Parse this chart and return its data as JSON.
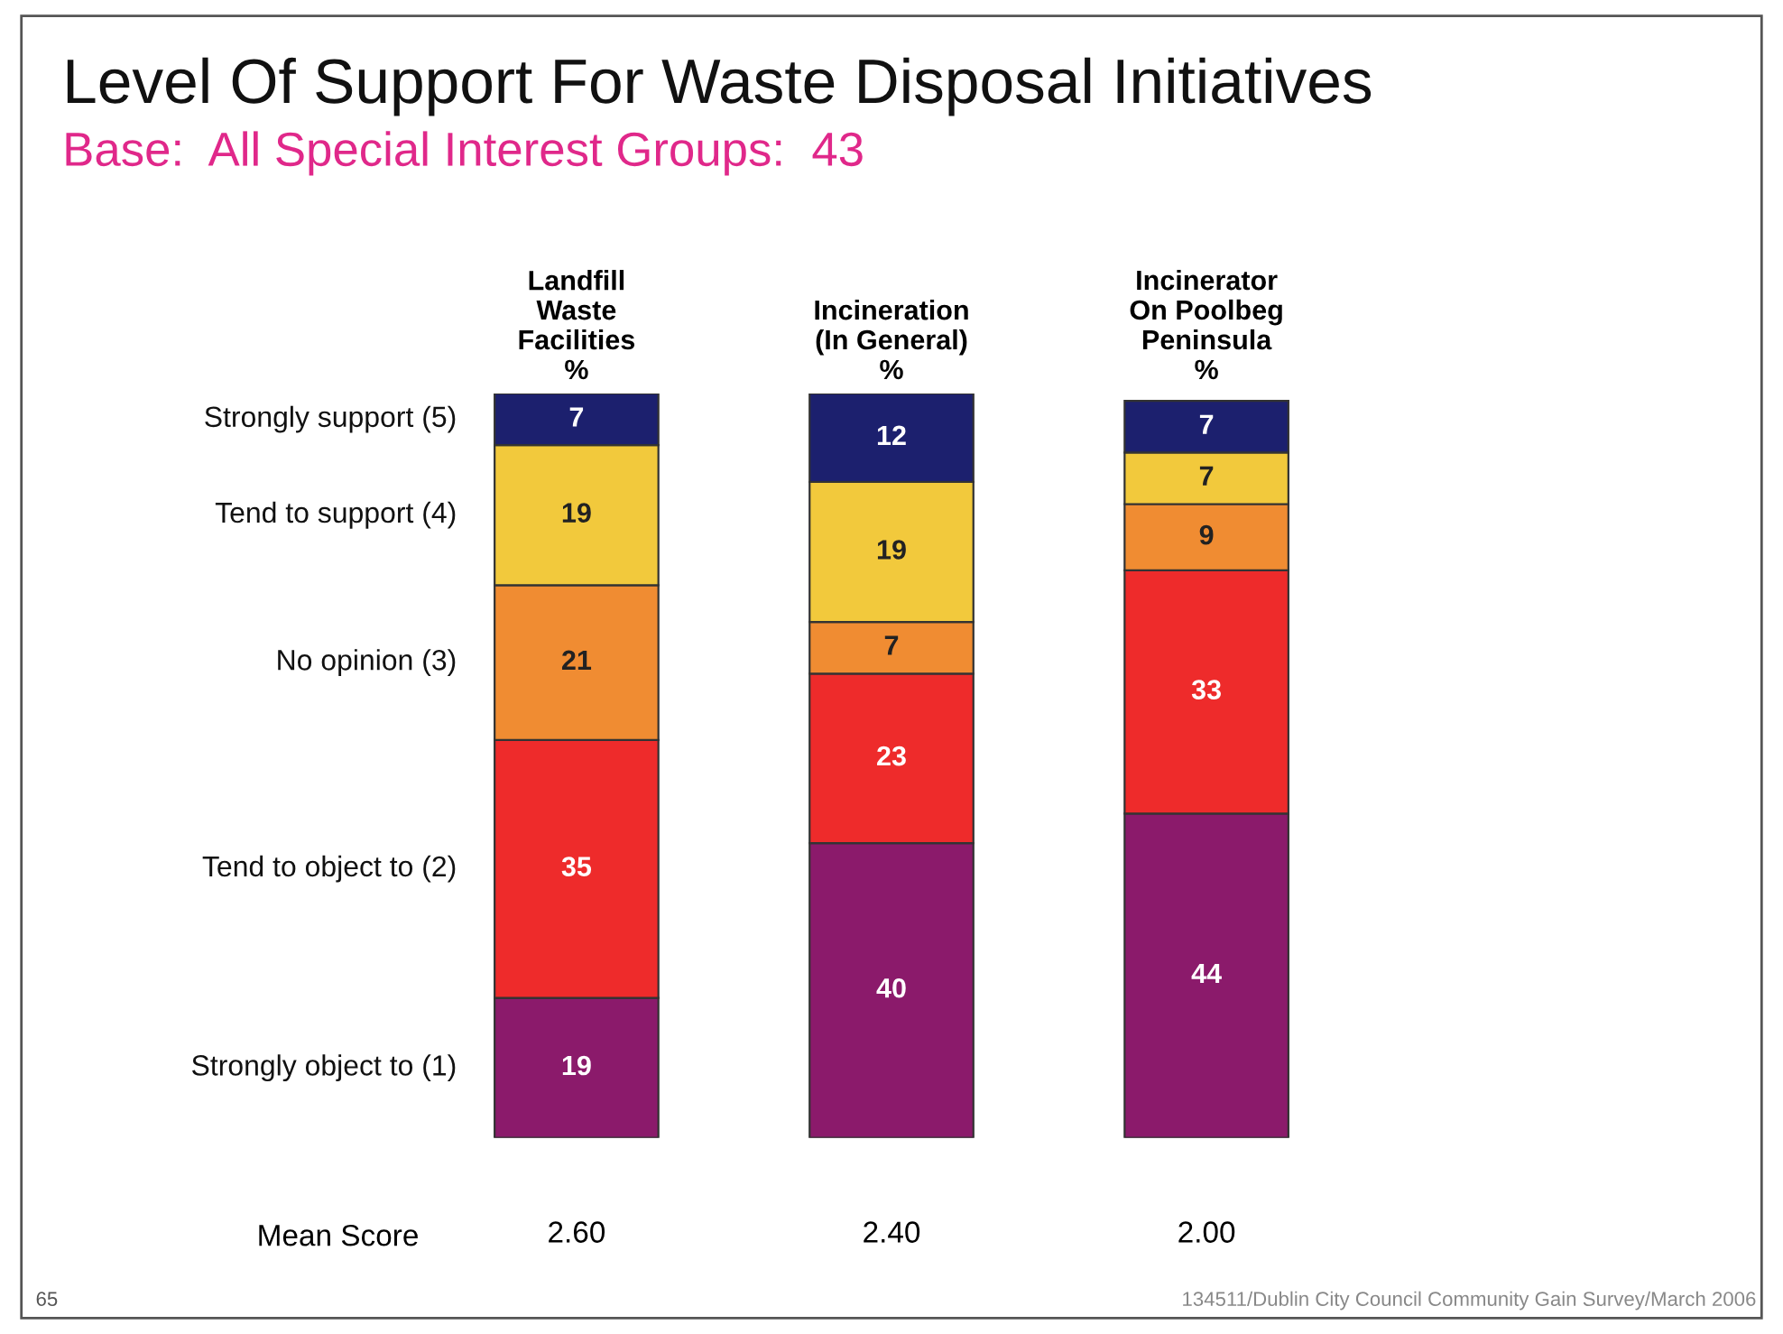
{
  "chart_data": {
    "type": "bar",
    "stacked": true,
    "data_labels": true,
    "legend": false,
    "title": "Level Of Support For Waste Disposal Initiatives",
    "subtitle": "Base:  All Special Interest Groups:  43",
    "categories": [
      "Landfill\nWaste\nFacilities\n%",
      "Incineration\n(In General)\n%",
      "Incinerator\nOn Poolbeg\nPeninsula\n%"
    ],
    "series": [
      {
        "name": "Strongly object to (1)",
        "color": "#8b1a6b",
        "values": [
          19,
          40,
          44
        ]
      },
      {
        "name": "Tend to object to (2)",
        "color": "#ee2b2b",
        "values": [
          35,
          23,
          33
        ]
      },
      {
        "name": "No opinion (3)",
        "color": "#f08c32",
        "values": [
          21,
          7,
          9
        ]
      },
      {
        "name": "Tend to support (4)",
        "color": "#f2c93c",
        "values": [
          19,
          19,
          7
        ]
      },
      {
        "name": "Strongly support (5)",
        "color": "#1c206e",
        "values": [
          7,
          12,
          7
        ]
      }
    ],
    "annotations": [
      "Mean Score",
      "2.60",
      "2.40",
      "2.00",
      "134511/Dublin City Council Community Gain Survey/March 2006",
      "65"
    ]
  }
}
